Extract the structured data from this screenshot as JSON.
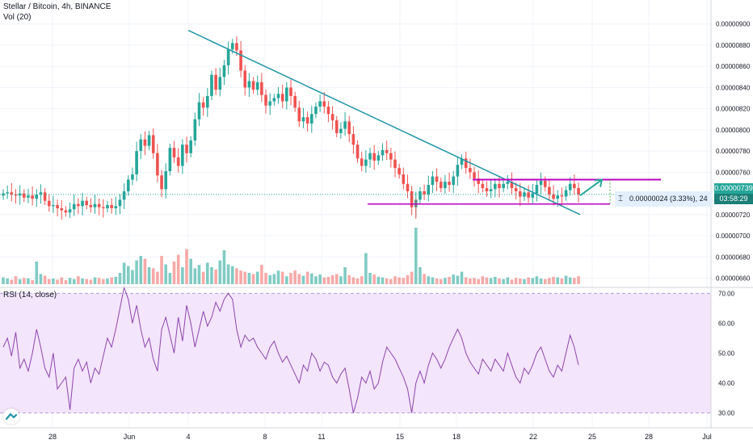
{
  "header": {
    "symbol_title": "Stellar / Bitcoin, 4h, BINANCE",
    "volume_label": "Vol (20)",
    "rsi_label": "RSI (14, close)"
  },
  "price_axis": {
    "ticks": [
      "0.00000900",
      "0.00000880",
      "0.00000860",
      "0.00000840",
      "0.00000820",
      "0.00000800",
      "0.00000780",
      "0.00000760",
      "0.00000720",
      "0.00000700",
      "0.00000680",
      "0.00000660"
    ],
    "last_price": "0.00000739",
    "countdown": "03:58:29"
  },
  "rsi_axis": {
    "ticks": [
      "70.00",
      "60.00",
      "50.00",
      "40.00",
      "30.00"
    ]
  },
  "time_axis": {
    "ticks": [
      "28",
      "Jun",
      "4",
      "8",
      "11",
      "15",
      "18",
      "22",
      "25",
      "28",
      "Jul"
    ]
  },
  "measurement": {
    "text": "0.00000024 (3.33%), 24"
  },
  "colors": {
    "up": "#26a69a",
    "down": "#ef5350",
    "trendline": "#2196a8",
    "range_lines": "#c000c0",
    "projection": "#26a69a",
    "rsi_line": "#8e44ad",
    "rsi_band": "#f3e5fb",
    "last_price_badge": "#26a69a",
    "countdown_badge": "#1b7f78"
  },
  "chart_data": [
    {
      "type": "candlestick",
      "title": "Stellar / Bitcoin, 4h, BINANCE",
      "ylim": [
        6.52e-06,
        9.12e-06
      ],
      "y_scale": "linear",
      "x_ticks": [
        "28",
        "Jun",
        "4",
        "8",
        "11",
        "15",
        "18",
        "22",
        "25",
        "28",
        "Jul"
      ],
      "series_close_approx": [
        7.4e-06,
        7.41e-06,
        7.39e-06,
        7.38e-06,
        7.4e-06,
        7.36e-06,
        7.38e-06,
        7.35e-06,
        7.39e-06,
        7.41e-06,
        7.33e-06,
        7.28e-06,
        7.29e-06,
        7.26e-06,
        7.24e-06,
        7.22e-06,
        7.25e-06,
        7.3e-06,
        7.28e-06,
        7.33e-06,
        7.29e-06,
        7.27e-06,
        7.3e-06,
        7.27e-06,
        7.26e-06,
        7.29e-06,
        7.26e-06,
        7.28e-06,
        7.34e-06,
        7.42e-06,
        7.53e-06,
        7.58e-06,
        7.8e-06,
        7.91e-06,
        7.85e-06,
        7.95e-06,
        7.78e-06,
        7.57e-06,
        7.44e-06,
        7.61e-06,
        7.83e-06,
        7.74e-06,
        7.66e-06,
        7.86e-06,
        7.78e-06,
        7.9e-06,
        8.1e-06,
        8.26e-06,
        8.21e-06,
        8.32e-06,
        8.52e-06,
        8.38e-06,
        8.5e-06,
        8.61e-06,
        8.76e-06,
        8.82e-06,
        8.75e-06,
        8.56e-06,
        8.4e-06,
        8.46e-06,
        8.38e-06,
        8.45e-06,
        8.33e-06,
        8.23e-06,
        8.27e-06,
        8.3e-06,
        8.34e-06,
        8.27e-06,
        8.4e-06,
        8.32e-06,
        8.21e-06,
        8.08e-06,
        8.12e-06,
        8.06e-06,
        8.15e-06,
        8.22e-06,
        8.27e-06,
        8.22e-06,
        8.15e-06,
        8.09e-06,
        7.97e-06,
        8.01e-06,
        8.08e-06,
        7.96e-06,
        7.86e-06,
        7.73e-06,
        7.66e-06,
        7.72e-06,
        7.78e-06,
        7.71e-06,
        7.76e-06,
        7.81e-06,
        7.78e-06,
        7.72e-06,
        7.64e-06,
        7.58e-06,
        7.49e-06,
        7.42e-06,
        7.27e-06,
        7.34e-06,
        7.42e-06,
        7.39e-06,
        7.48e-06,
        7.56e-06,
        7.51e-06,
        7.45e-06,
        7.51e-06,
        7.48e-06,
        7.56e-06,
        7.67e-06,
        7.73e-06,
        7.64e-06,
        7.6e-06,
        7.54e-06,
        7.49e-06,
        7.45e-06,
        7.42e-06,
        7.44e-06,
        7.49e-06,
        7.45e-06,
        7.49e-06,
        7.51e-06,
        7.45e-06,
        7.42e-06,
        7.37e-06,
        7.41e-06,
        7.36e-06,
        7.4e-06,
        7.48e-06,
        7.52e-06,
        7.46e-06,
        7.39e-06,
        7.35e-06,
        7.38e-06,
        7.37e-06,
        7.43e-06,
        7.49e-06,
        7.45e-06,
        7.39e-06
      ],
      "annotations": {
        "descending_trendline": {
          "start_price": 8.94e-06,
          "end_price": 7.2e-06
        },
        "range_top": 7.53e-06,
        "range_bottom": 7.3e-06,
        "projection_target": 7.53e-06
      }
    },
    {
      "type": "bar",
      "title": "Vol (20)",
      "values_relative": [
        0.12,
        0.1,
        0.08,
        0.14,
        0.09,
        0.11,
        0.1,
        0.07,
        0.4,
        0.18,
        0.15,
        0.09,
        0.1,
        0.08,
        0.12,
        0.07,
        0.11,
        0.09,
        0.14,
        0.1,
        0.09,
        0.08,
        0.12,
        0.11,
        0.09,
        0.1,
        0.12,
        0.13,
        0.2,
        0.38,
        0.32,
        0.25,
        0.42,
        0.5,
        0.45,
        0.3,
        0.28,
        0.22,
        0.5,
        0.35,
        0.2,
        0.4,
        0.52,
        0.3,
        0.62,
        0.45,
        0.28,
        0.34,
        0.22,
        0.38,
        0.3,
        0.26,
        0.42,
        0.6,
        0.35,
        0.32,
        0.28,
        0.24,
        0.22,
        0.2,
        0.18,
        0.22,
        0.34,
        0.2,
        0.16,
        0.18,
        0.24,
        0.22,
        0.14,
        0.2,
        0.24,
        0.18,
        0.15,
        0.22,
        0.19,
        0.14,
        0.17,
        0.12,
        0.13,
        0.16,
        0.18,
        0.14,
        0.3,
        0.16,
        0.12,
        0.1,
        0.14,
        0.55,
        0.2,
        0.17,
        0.13,
        0.12,
        0.1,
        0.09,
        0.14,
        0.12,
        0.11,
        0.16,
        0.22,
        1.0,
        0.3,
        0.18,
        0.14,
        0.12,
        0.1,
        0.09,
        0.11,
        0.13,
        0.17,
        0.15,
        0.22,
        0.12,
        0.1,
        0.11,
        0.09,
        0.14,
        0.12,
        0.11,
        0.13,
        0.1,
        0.09,
        0.12,
        0.08,
        0.11,
        0.1,
        0.09,
        0.12,
        0.11,
        0.14,
        0.1,
        0.09,
        0.11,
        0.13,
        0.12,
        0.1,
        0.15,
        0.12,
        0.11,
        0.14
      ]
    },
    {
      "type": "line",
      "title": "RSI (14, close)",
      "ylim": [
        25,
        72
      ],
      "bands": [
        30,
        70
      ],
      "values": [
        52,
        55,
        49,
        57,
        45,
        48,
        44,
        50,
        58,
        52,
        45,
        42,
        50,
        38,
        40,
        42,
        31,
        45,
        48,
        44,
        47,
        40,
        45,
        43,
        49,
        55,
        52,
        58,
        65,
        72,
        68,
        60,
        66,
        58,
        52,
        55,
        48,
        44,
        58,
        62,
        56,
        50,
        62,
        54,
        66,
        60,
        52,
        58,
        64,
        59,
        62,
        67,
        64,
        68,
        70,
        68,
        58,
        52,
        56,
        54,
        55,
        52,
        50,
        48,
        52,
        54,
        50,
        47,
        49,
        46,
        43,
        40,
        46,
        44,
        50,
        48,
        44,
        47,
        46,
        42,
        40,
        43,
        45,
        38,
        30,
        35,
        42,
        40,
        44,
        38,
        40,
        47,
        52,
        50,
        48,
        45,
        42,
        38,
        30,
        40,
        44,
        40,
        46,
        50,
        48,
        45,
        48,
        52,
        55,
        58,
        55,
        50,
        47,
        45,
        43,
        48,
        46,
        44,
        48,
        46,
        44,
        50,
        46,
        42,
        40,
        45,
        43,
        46,
        50,
        52,
        48,
        44,
        42,
        46,
        44,
        50,
        56,
        52,
        46
      ]
    }
  ]
}
